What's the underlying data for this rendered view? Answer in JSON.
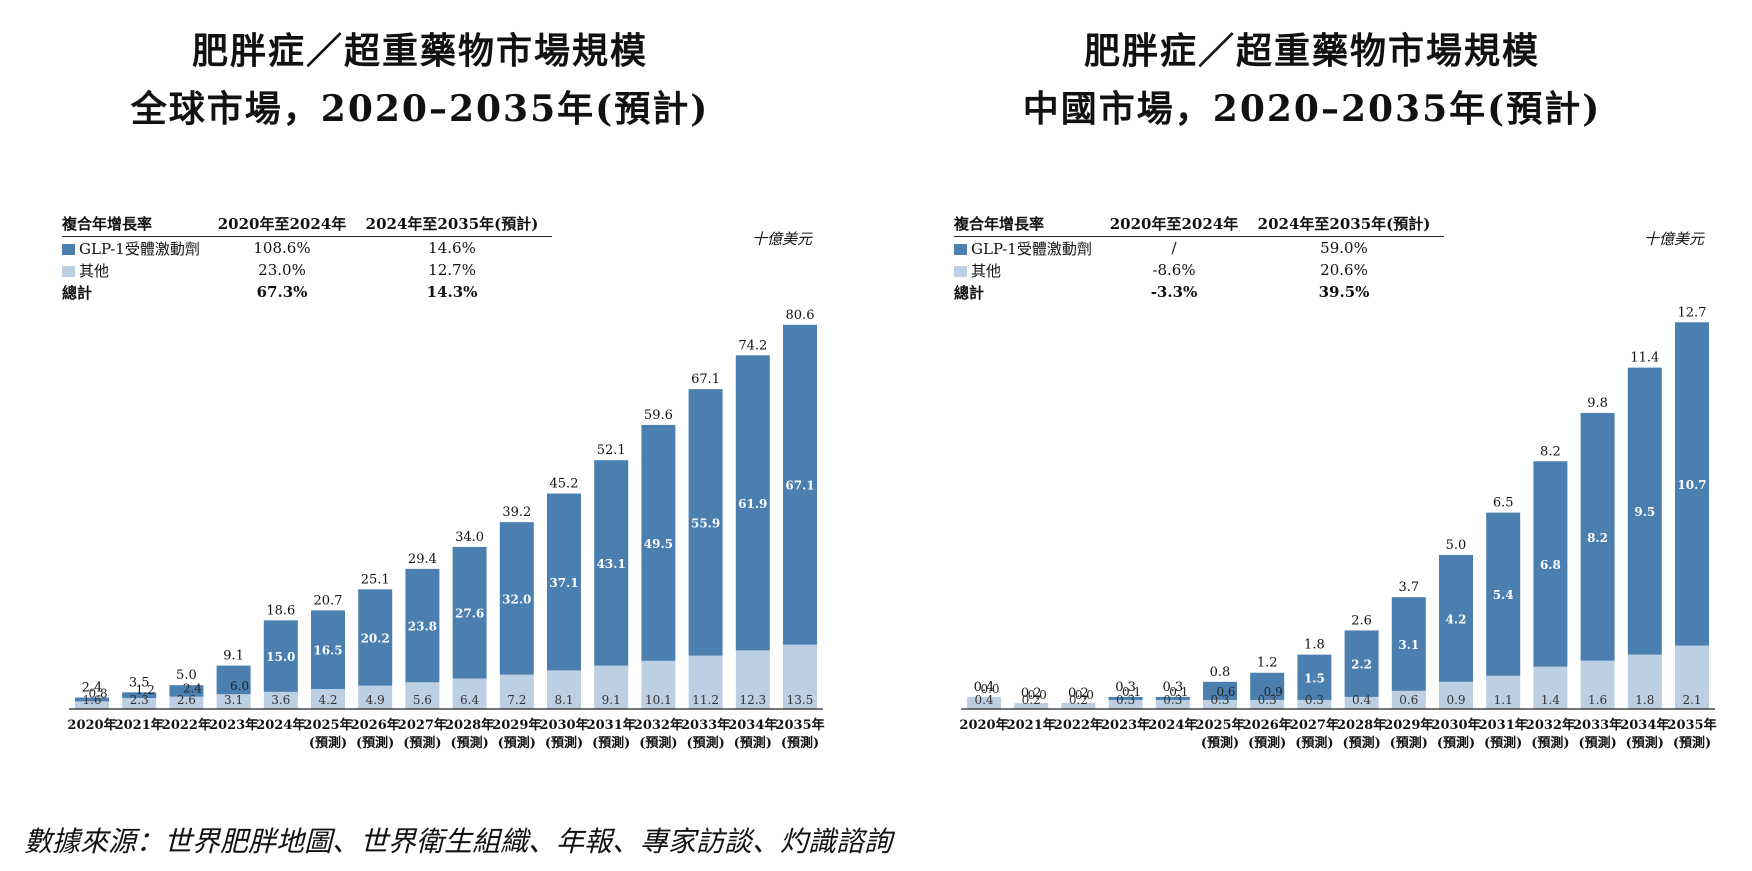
{
  "source": "數據來源：世界肥胖地圖、世界衛生組織、年報、專家訪談、灼識諮詢",
  "colors": {
    "glp1": "#4a7fb0",
    "other": "#bccfe3"
  },
  "chart_data": [
    {
      "type": "bar",
      "stacked": true,
      "title": "肥胖症／超重藥物市場規模",
      "subtitle": "全球市場，2020–2035年(預計)",
      "unit": "十億美元",
      "xlabel": "",
      "ylabel": "",
      "ylim": [
        0,
        90
      ],
      "categories": [
        "2020年",
        "2021年",
        "2022年",
        "2023年",
        "2024年",
        "2025年",
        "2026年",
        "2027年",
        "2028年",
        "2029年",
        "2030年",
        "2031年",
        "2032年",
        "2033年",
        "2034年",
        "2035年"
      ],
      "forecast_label": "(預測)",
      "forecast_from_index": 5,
      "series": [
        {
          "name": "其他",
          "values": [
            1.6,
            2.3,
            2.6,
            3.1,
            3.6,
            4.2,
            4.9,
            5.6,
            6.4,
            7.2,
            8.1,
            9.1,
            10.1,
            11.2,
            12.3,
            13.5
          ]
        },
        {
          "name": "GLP-1受體激動劑",
          "values": [
            0.8,
            1.2,
            2.4,
            6.0,
            15.0,
            16.5,
            20.2,
            23.8,
            27.6,
            32.0,
            37.1,
            43.1,
            49.5,
            55.9,
            61.9,
            67.1
          ]
        }
      ],
      "totals": [
        2.4,
        3.5,
        5.0,
        9.1,
        18.6,
        20.7,
        25.1,
        29.4,
        34.0,
        39.2,
        45.2,
        52.1,
        59.6,
        67.1,
        74.2,
        80.6
      ],
      "cagr_table": {
        "headers": [
          "複合年增長率",
          "2020年至2024年",
          "2024年至2035年(預計)"
        ],
        "rows": [
          {
            "label": "GLP-1受體激動劑",
            "a": "108.6%",
            "b": "14.6%"
          },
          {
            "label": "其他",
            "a": "23.0%",
            "b": "12.7%"
          },
          {
            "label": "總計",
            "a": "67.3%",
            "b": "14.3%"
          }
        ]
      }
    },
    {
      "type": "bar",
      "stacked": true,
      "title": "肥胖症／超重藥物市場規模",
      "subtitle": "中國市場，2020–2035年(預計)",
      "unit": "十億美元",
      "xlabel": "",
      "ylabel": "",
      "ylim": [
        0,
        14.2
      ],
      "categories": [
        "2020年",
        "2021年",
        "2022年",
        "2023年",
        "2024年",
        "2025年",
        "2026年",
        "2027年",
        "2028年",
        "2029年",
        "2030年",
        "2031年",
        "2032年",
        "2033年",
        "2034年",
        "2035年"
      ],
      "forecast_label": "(預測)",
      "forecast_from_index": 5,
      "series": [
        {
          "name": "其他",
          "values": [
            0.4,
            0.2,
            0.2,
            0.3,
            0.3,
            0.3,
            0.3,
            0.3,
            0.4,
            0.6,
            0.9,
            1.1,
            1.4,
            1.6,
            1.8,
            2.1
          ]
        },
        {
          "name": "GLP-1受體激動劑",
          "values": [
            0.0,
            0.0,
            0.0,
            0.1,
            0.1,
            0.6,
            0.9,
            1.5,
            2.2,
            3.1,
            4.2,
            5.4,
            6.8,
            8.2,
            9.5,
            10.7
          ]
        }
      ],
      "totals": [
        0.4,
        0.2,
        0.2,
        0.3,
        0.3,
        0.8,
        1.2,
        1.8,
        2.6,
        3.7,
        5.0,
        6.5,
        8.2,
        9.8,
        11.4,
        12.7
      ],
      "cagr_table": {
        "headers": [
          "複合年增長率",
          "2020年至2024年",
          "2024年至2035年(預計)"
        ],
        "rows": [
          {
            "label": "GLP-1受體激動劑",
            "a": "/",
            "b": "59.0%"
          },
          {
            "label": "其他",
            "a": "-8.6%",
            "b": "20.6%"
          },
          {
            "label": "總計",
            "a": "-3.3%",
            "b": "39.5%"
          }
        ]
      }
    }
  ]
}
